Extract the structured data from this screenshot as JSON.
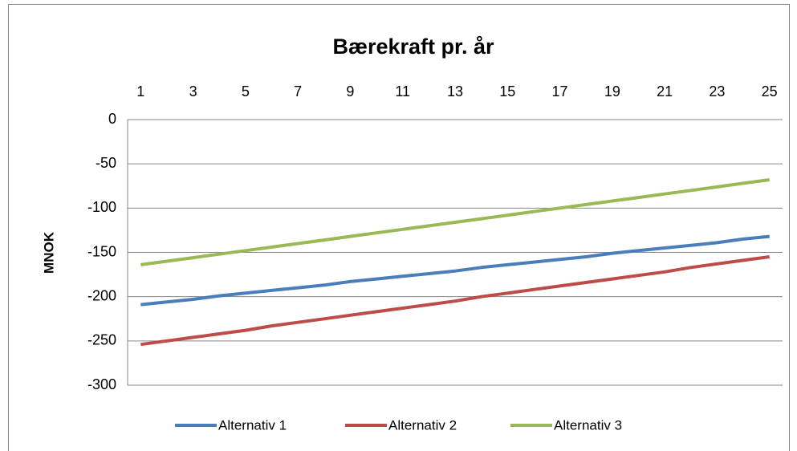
{
  "chart_data": {
    "type": "line",
    "title": "Bærekraft pr. år",
    "y_label": "MNOK",
    "categories": [
      1,
      null,
      3,
      null,
      5,
      null,
      7,
      null,
      9,
      null,
      11,
      null,
      13,
      null,
      15,
      null,
      17,
      null,
      19,
      null,
      21,
      null,
      23,
      null,
      25
    ],
    "series": [
      {
        "name": "Alternativ 1",
        "color": "#4a7ebb",
        "values": [
          -209,
          -206,
          -203,
          -199,
          -196,
          -193,
          -190,
          -187,
          -183,
          -180,
          -177,
          -174,
          -171,
          -167,
          -164,
          -161,
          -158,
          -155,
          -151,
          -148,
          -145,
          -142,
          -139,
          -135,
          -132
        ]
      },
      {
        "name": "Alternativ 2",
        "color": "#be4b48",
        "values": [
          -254,
          -250,
          -246,
          -242,
          -238,
          -233,
          -229,
          -225,
          -221,
          -217,
          -213,
          -209,
          -205,
          -200,
          -196,
          -192,
          -188,
          -184,
          -180,
          -176,
          -172,
          -167,
          -163,
          -159,
          -155
        ]
      },
      {
        "name": "Alternativ 3",
        "color": "#98b954",
        "values": [
          -164,
          -160,
          -156,
          -152,
          -148,
          -144,
          -140,
          -136,
          -132,
          -128,
          -124,
          -120,
          -116,
          -112,
          -108,
          -104,
          -100,
          -96,
          -92,
          -88,
          -84,
          -80,
          -76,
          -72,
          -68
        ]
      }
    ],
    "ylim": [
      -300,
      0
    ],
    "yticks": [
      -300,
      -250,
      -200,
      -150,
      -100,
      -50,
      0
    ],
    "grid": true,
    "legend": "bottom"
  }
}
